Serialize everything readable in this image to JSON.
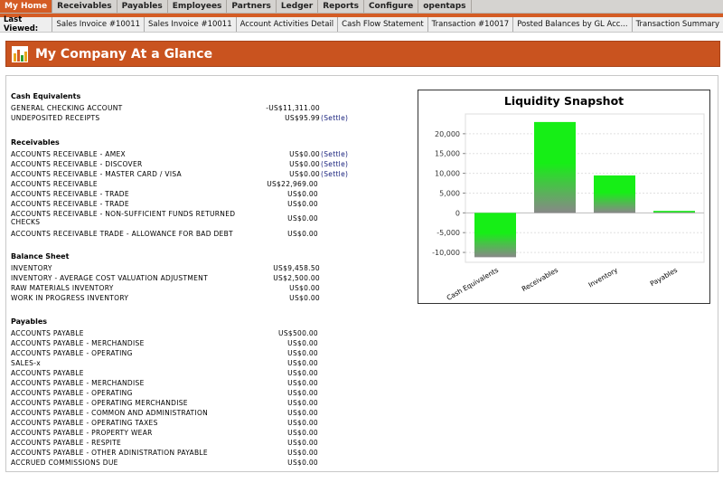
{
  "nav": {
    "tabs": [
      "My Home",
      "Receivables",
      "Payables",
      "Employees",
      "Partners",
      "Ledger",
      "Reports",
      "Configure",
      "opentaps"
    ],
    "active": "My Home"
  },
  "last_viewed": {
    "label": "Last Viewed:",
    "items": [
      "Sales Invoice #10011",
      "Sales Invoice #10011",
      "Account Activities Detail",
      "Cash Flow Statement",
      "Transaction #10017",
      "Posted Balances by GL Acc...",
      "Transaction Summary"
    ]
  },
  "header": {
    "title": "My Company At a Glance",
    "icon": "bar-chart-icon"
  },
  "sections": [
    {
      "title": "Cash Equivalents",
      "rows": [
        {
          "name": "GENERAL CHECKING ACCOUNT",
          "amount": "-US$11,311.00",
          "settle": ""
        },
        {
          "name": "UNDEPOSITED RECEIPTS",
          "amount": "US$95.99",
          "settle": "(Settle)"
        }
      ]
    },
    {
      "title": "Receivables",
      "rows": [
        {
          "name": "ACCOUNTS RECEIVABLE - AMEX",
          "amount": "US$0.00",
          "settle": "(Settle)"
        },
        {
          "name": "ACCOUNTS RECEIVABLE - DISCOVER",
          "amount": "US$0.00",
          "settle": "(Settle)"
        },
        {
          "name": "ACCOUNTS RECEIVABLE - MASTER CARD / VISA",
          "amount": "US$0.00",
          "settle": "(Settle)"
        },
        {
          "name": "ACCOUNTS RECEIVABLE",
          "amount": "US$22,969.00",
          "settle": ""
        },
        {
          "name": "ACCOUNTS RECEIVABLE - TRADE",
          "amount": "US$0.00",
          "settle": ""
        },
        {
          "name": "ACCOUNTS RECEIVABLE - TRADE",
          "amount": "US$0.00",
          "settle": ""
        },
        {
          "name": "ACCOUNTS RECEIVABLE - NON-SUFFICIENT FUNDS RETURNED CHECKS",
          "amount": "US$0.00",
          "settle": ""
        },
        {
          "name": "ACCOUNTS RECEIVABLE TRADE - ALLOWANCE FOR BAD DEBT",
          "amount": "US$0.00",
          "settle": ""
        }
      ]
    },
    {
      "title": "Balance Sheet",
      "rows": [
        {
          "name": "INVENTORY",
          "amount": "US$9,458.50",
          "settle": ""
        },
        {
          "name": "INVENTORY - AVERAGE COST VALUATION ADJUSTMENT",
          "amount": "US$2,500.00",
          "settle": ""
        },
        {
          "name": "RAW MATERIALS INVENTORY",
          "amount": "US$0.00",
          "settle": ""
        },
        {
          "name": "WORK IN PROGRESS INVENTORY",
          "amount": "US$0.00",
          "settle": ""
        }
      ]
    },
    {
      "title": "Payables",
      "rows": [
        {
          "name": "ACCOUNTS PAYABLE",
          "amount": "US$500.00",
          "settle": ""
        },
        {
          "name": "ACCOUNTS PAYABLE - MERCHANDISE",
          "amount": "US$0.00",
          "settle": ""
        },
        {
          "name": "ACCOUNTS PAYABLE - OPERATING",
          "amount": "US$0.00",
          "settle": ""
        },
        {
          "name": "SALES-x",
          "amount": "US$0.00",
          "settle": ""
        },
        {
          "name": "ACCOUNTS PAYABLE",
          "amount": "US$0.00",
          "settle": ""
        },
        {
          "name": "ACCOUNTS PAYABLE - MERCHANDISE",
          "amount": "US$0.00",
          "settle": ""
        },
        {
          "name": "ACCOUNTS PAYABLE - OPERATING",
          "amount": "US$0.00",
          "settle": ""
        },
        {
          "name": "ACCOUNTS PAYABLE - OPERATING MERCHANDISE",
          "amount": "US$0.00",
          "settle": ""
        },
        {
          "name": "ACCOUNTS PAYABLE - COMMON AND ADMINISTRATION",
          "amount": "US$0.00",
          "settle": ""
        },
        {
          "name": "ACCOUNTS PAYABLE - OPERATING TAXES",
          "amount": "US$0.00",
          "settle": ""
        },
        {
          "name": "ACCOUNTS PAYABLE - PROPERTY WEAR",
          "amount": "US$0.00",
          "settle": ""
        },
        {
          "name": "ACCOUNTS PAYABLE - RESPITE",
          "amount": "US$0.00",
          "settle": ""
        },
        {
          "name": "ACCOUNTS PAYABLE - OTHER ADINISTRATION PAYABLE",
          "amount": "US$0.00",
          "settle": ""
        },
        {
          "name": "ACCRUED COMMISSIONS DUE",
          "amount": "US$0.00",
          "settle": ""
        }
      ]
    }
  ],
  "chart_data": {
    "type": "bar",
    "title": "Liquidity Snapshot",
    "categories": [
      "Cash Equivalents",
      "Receivables",
      "Inventory",
      "Payables"
    ],
    "values": [
      -11215,
      22969,
      9458.5,
      500
    ],
    "ylim": [
      -12500,
      25000
    ],
    "yticks": [
      -10000,
      -5000,
      0,
      5000,
      10000,
      15000,
      20000
    ],
    "ytick_labels": [
      "-10,000",
      "-5,000",
      "0",
      "5,000",
      "10,000",
      "15,000",
      "20,000"
    ],
    "grid": true,
    "legend": "none",
    "colors": {
      "top": "#16ee16",
      "bottom": "#888888"
    }
  }
}
